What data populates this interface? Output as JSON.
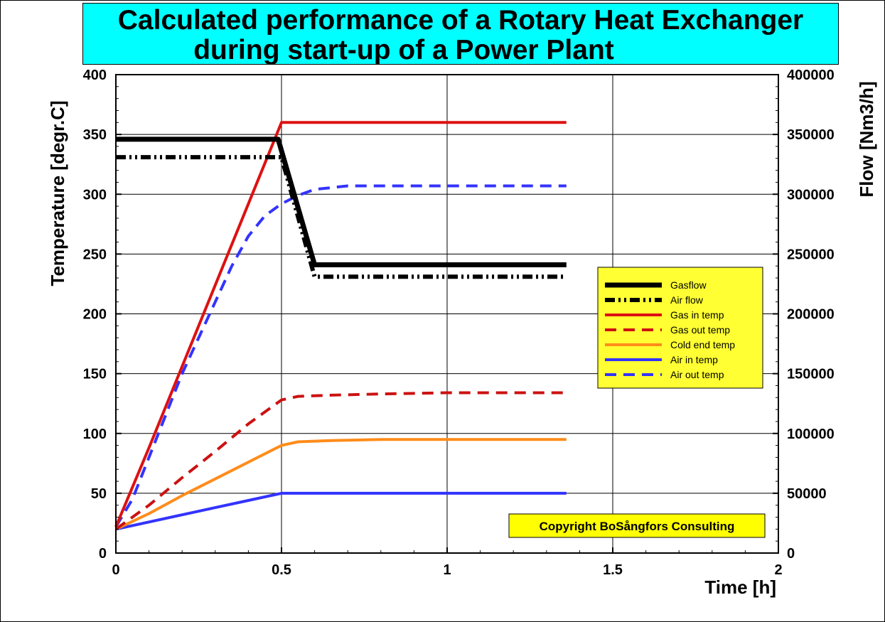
{
  "chart_data": {
    "type": "line",
    "title": "Calculated performance of a Rotary Heat Exchanger during start-up of a Power Plant",
    "title_lines": [
      "Calculated performance of a Rotary Heat Exchanger",
      "during start-up of a Power Plant"
    ],
    "xlabel": "Time [h]",
    "ylabel": "Temperature [degr.C]",
    "y2label": "Flow [Nm3/h]",
    "xlim": [
      0,
      2
    ],
    "ylim": [
      0,
      400
    ],
    "y2lim": [
      0,
      400000
    ],
    "xticks": [
      "0",
      "0.5",
      "1",
      "1.5",
      "2"
    ],
    "yticks": [
      "0",
      "50",
      "100",
      "150",
      "200",
      "250",
      "300",
      "350",
      "400"
    ],
    "y2ticks": [
      "0",
      "50000",
      "100000",
      "150000",
      "200000",
      "250000",
      "300000",
      "350000",
      "400000"
    ],
    "grid": true,
    "legend_position": "right",
    "series": [
      {
        "name": "Gasflow",
        "axis": "right",
        "color": "#000000",
        "style": "solid",
        "width": 7,
        "points": [
          [
            0,
            346000
          ],
          [
            0.49,
            346000
          ],
          [
            0.6,
            241000
          ],
          [
            1.36,
            241000
          ]
        ]
      },
      {
        "name": "Air flow",
        "axis": "right",
        "color": "#000000",
        "style": "dashdotdot",
        "width": 6,
        "points": [
          [
            0,
            331000
          ],
          [
            0.5,
            331000
          ],
          [
            0.6,
            231000
          ],
          [
            1.36,
            231000
          ]
        ]
      },
      {
        "name": "Gas in temp",
        "axis": "left",
        "color": "#dd1111",
        "style": "solid",
        "width": 4,
        "points": [
          [
            0,
            22
          ],
          [
            0.1,
            88
          ],
          [
            0.2,
            156
          ],
          [
            0.3,
            224
          ],
          [
            0.4,
            292
          ],
          [
            0.5,
            360
          ],
          [
            0.6,
            360
          ],
          [
            1.36,
            360
          ]
        ]
      },
      {
        "name": "Gas out temp",
        "axis": "left",
        "color": "#cc1111",
        "style": "dash",
        "width": 4,
        "points": [
          [
            0,
            20
          ],
          [
            0.1,
            40
          ],
          [
            0.2,
            63
          ],
          [
            0.3,
            85
          ],
          [
            0.4,
            108
          ],
          [
            0.5,
            128
          ],
          [
            0.55,
            131
          ],
          [
            0.65,
            132
          ],
          [
            0.8,
            133
          ],
          [
            1,
            134
          ],
          [
            1.36,
            134
          ]
        ]
      },
      {
        "name": "Cold end temp",
        "axis": "left",
        "color": "#ff8c1a",
        "style": "solid",
        "width": 4,
        "points": [
          [
            0,
            20
          ],
          [
            0.1,
            33
          ],
          [
            0.2,
            48
          ],
          [
            0.3,
            62
          ],
          [
            0.4,
            76
          ],
          [
            0.5,
            90
          ],
          [
            0.55,
            93
          ],
          [
            0.65,
            94
          ],
          [
            0.8,
            95
          ],
          [
            1,
            95
          ],
          [
            1.36,
            95
          ]
        ]
      },
      {
        "name": "Air in temp",
        "axis": "left",
        "color": "#3333ff",
        "style": "solid",
        "width": 4,
        "points": [
          [
            0,
            20
          ],
          [
            0.1,
            26
          ],
          [
            0.2,
            32
          ],
          [
            0.3,
            38
          ],
          [
            0.4,
            44
          ],
          [
            0.5,
            50
          ],
          [
            1.36,
            50
          ]
        ]
      },
      {
        "name": "Air out temp",
        "axis": "left",
        "color": "#3333ff",
        "style": "dash",
        "width": 4,
        "points": [
          [
            0,
            22
          ],
          [
            0.05,
            45
          ],
          [
            0.1,
            80
          ],
          [
            0.15,
            115
          ],
          [
            0.2,
            150
          ],
          [
            0.25,
            180
          ],
          [
            0.3,
            210
          ],
          [
            0.35,
            240
          ],
          [
            0.4,
            265
          ],
          [
            0.45,
            282
          ],
          [
            0.5,
            292
          ],
          [
            0.55,
            299
          ],
          [
            0.6,
            304
          ],
          [
            0.7,
            307
          ],
          [
            0.8,
            307
          ],
          [
            1,
            307
          ],
          [
            1.36,
            307
          ]
        ]
      }
    ],
    "annotation": "Copyright BoSångfors Consulting"
  },
  "colors": {
    "title_background": "#00ffff",
    "legend_background": "#ffff33",
    "copyright_background": "#ffff00",
    "grid": "#000000"
  }
}
